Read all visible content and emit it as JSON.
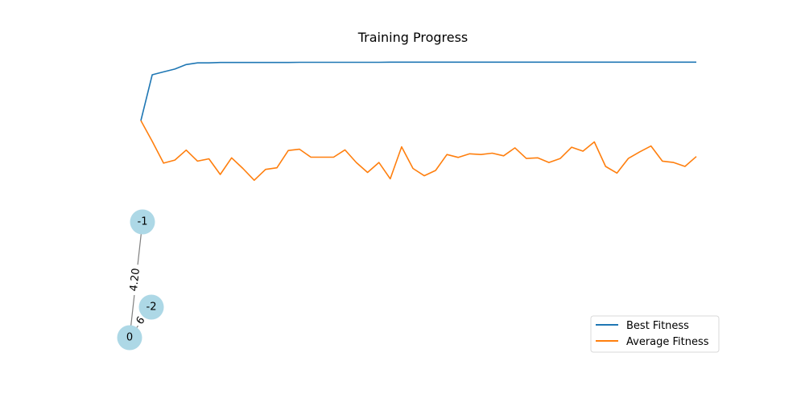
{
  "chart_data": {
    "type": "line",
    "title": "Training Progress",
    "xlabel": "",
    "ylabel": "",
    "grid": false,
    "axes_visible": false,
    "legend_placement": "bottom-right",
    "x": [
      0,
      1,
      2,
      3,
      4,
      5,
      6,
      7,
      8,
      9,
      10,
      11,
      12,
      13,
      14,
      15,
      16,
      17,
      18,
      19,
      20,
      21,
      22,
      23,
      24,
      25,
      26,
      27,
      28,
      29,
      30,
      31,
      32,
      33,
      34,
      35,
      36,
      37,
      38,
      39,
      40,
      41,
      42,
      43,
      44,
      45,
      46,
      47,
      48,
      49
    ],
    "series": [
      {
        "name": "Best Fitness",
        "color": "#1f77b4",
        "values": [
          0.555,
          0.9,
          0.922,
          0.943,
          0.977,
          0.99,
          0.99,
          0.993,
          0.993,
          0.993,
          0.993,
          0.993,
          0.993,
          0.993,
          0.994,
          0.994,
          0.994,
          0.994,
          0.994,
          0.994,
          0.994,
          0.994,
          0.995,
          0.995,
          0.995,
          0.995,
          0.995,
          0.995,
          0.995,
          0.995,
          0.995,
          0.995,
          0.995,
          0.995,
          0.995,
          0.995,
          0.995,
          0.995,
          0.995,
          0.995,
          0.995,
          0.995,
          0.995,
          0.995,
          0.995,
          0.995,
          0.995,
          0.995,
          0.995,
          0.995
        ]
      },
      {
        "name": "Average Fitness",
        "color": "#ff7f0e",
        "values": [
          0.555,
          0.4,
          0.235,
          0.258,
          0.333,
          0.25,
          0.268,
          0.15,
          0.275,
          0.195,
          0.106,
          0.188,
          0.2,
          0.33,
          0.34,
          0.28,
          0.28,
          0.28,
          0.335,
          0.24,
          0.165,
          0.24,
          0.117,
          0.358,
          0.195,
          0.14,
          0.18,
          0.3,
          0.278,
          0.305,
          0.3,
          0.31,
          0.29,
          0.35,
          0.27,
          0.275,
          0.24,
          0.27,
          0.355,
          0.325,
          0.395,
          0.21,
          0.16,
          0.27,
          0.32,
          0.364,
          0.25,
          0.24,
          0.21,
          0.285
        ]
      }
    ],
    "ylim": [
      -1.2,
      1.1
    ]
  },
  "graph": {
    "nodes": [
      {
        "id": "-1",
        "label": "-1"
      },
      {
        "id": "-2",
        "label": "-2"
      },
      {
        "id": "0",
        "label": "0"
      }
    ],
    "edges": [
      {
        "from": "-1",
        "to": "0",
        "label": "4.20"
      },
      {
        "from": "-2",
        "to": "0",
        "label": "6"
      }
    ],
    "node_color": "#add8e6",
    "edge_color": "#808080"
  }
}
